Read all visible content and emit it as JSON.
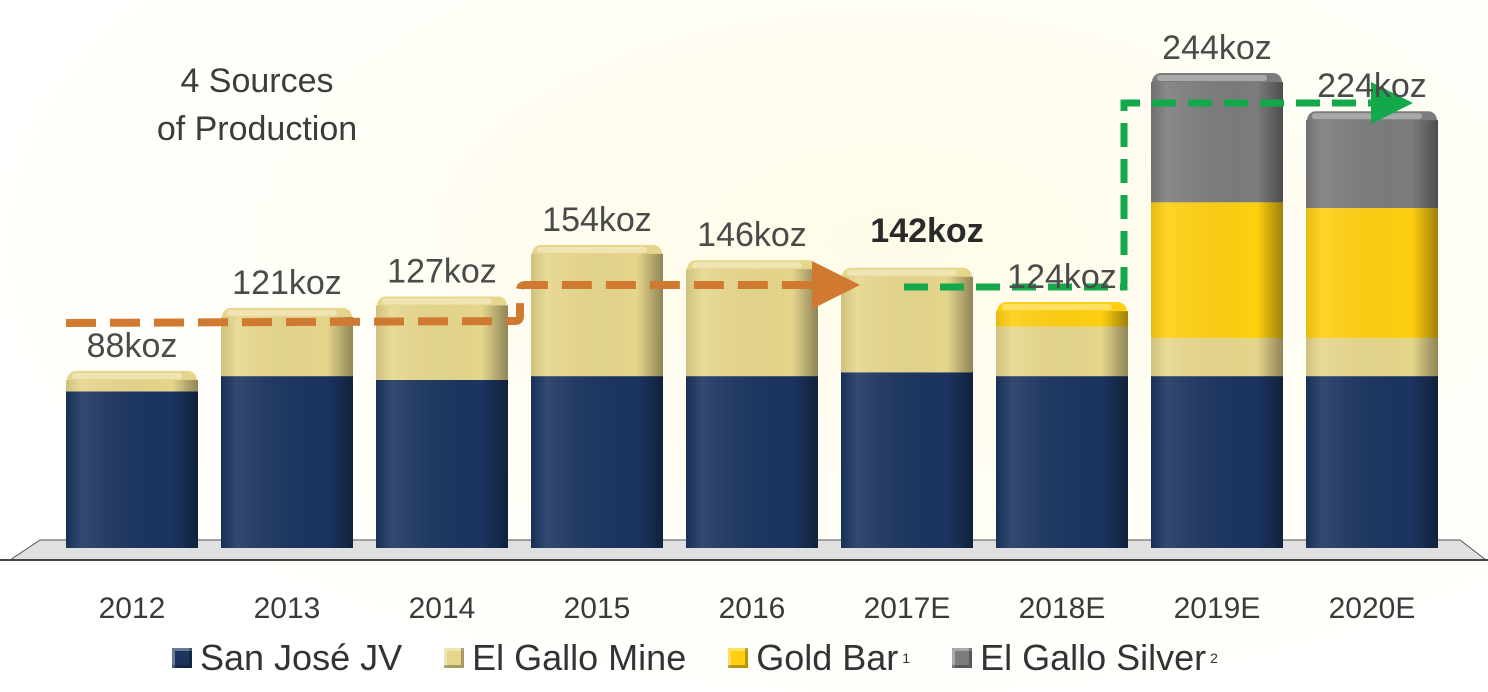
{
  "chart_data": {
    "type": "bar",
    "stacked": true,
    "categories": [
      "2012",
      "2013",
      "2014",
      "2015",
      "2016",
      "2017E",
      "2018E",
      "2019E",
      "2020E"
    ],
    "series": [
      {
        "name": "San José JV",
        "color": "#1b3560",
        "values": [
          82,
          90,
          88,
          90,
          90,
          92,
          90,
          90,
          90
        ]
      },
      {
        "name": "El Gallo Mine",
        "color": "#e6d68c",
        "values": [
          6,
          31,
          39,
          64,
          56,
          50,
          26,
          20,
          20
        ]
      },
      {
        "name": "Gold Bar",
        "color": "#ffcf10",
        "values": [
          0,
          0,
          0,
          0,
          0,
          0,
          8,
          71,
          68
        ]
      },
      {
        "name": "El Gallo Silver",
        "color": "#7c7c7c",
        "values": [
          0,
          0,
          0,
          0,
          0,
          0,
          0,
          63,
          46
        ]
      }
    ],
    "totals": [
      "88koz",
      "121koz",
      "127koz",
      "154koz",
      "146koz",
      "142koz",
      "124koz",
      "244koz",
      "224koz"
    ],
    "highlighted_total": "142koz",
    "ylim": [
      0,
      244
    ],
    "grid": false,
    "legend": "bottom",
    "annotation": [
      "4 Sources",
      "of Production"
    ],
    "legend_footnotes": [
      "",
      "",
      "1",
      "2"
    ]
  }
}
